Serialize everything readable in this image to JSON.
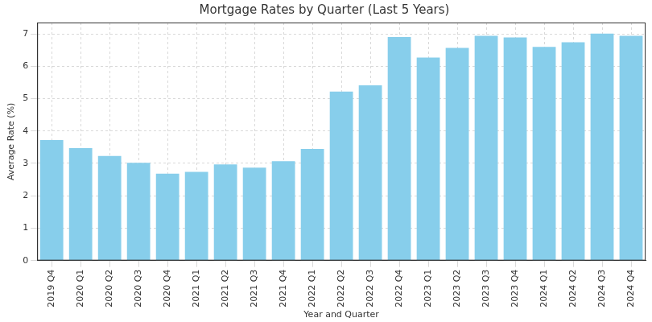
{
  "chart_data": {
    "type": "bar",
    "title": "Mortgage Rates by Quarter (Last 5 Years)",
    "x_label": "Year and Quarter",
    "y_label": "Average Rate (%)",
    "categories": [
      "2019 Q4",
      "2020 Q1",
      "2020 Q2",
      "2020 Q3",
      "2020 Q4",
      "2021 Q1",
      "2021 Q2",
      "2021 Q3",
      "2021 Q4",
      "2022 Q1",
      "2022 Q2",
      "2022 Q3",
      "2022 Q4",
      "2023 Q1",
      "2023 Q2",
      "2023 Q3",
      "2023 Q4",
      "2024 Q1",
      "2024 Q2",
      "2024 Q3",
      "2024 Q4"
    ],
    "values": [
      3.72,
      3.47,
      3.23,
      3.02,
      2.68,
      2.74,
      2.97,
      2.87,
      3.07,
      3.45,
      5.22,
      5.41,
      6.9,
      6.27,
      6.57,
      6.94,
      6.89,
      6.6,
      6.74,
      7.01,
      6.94
    ],
    "color": "#87ceeb",
    "ylim": [
      0,
      7.35
    ],
    "yticks": [
      0,
      1,
      2,
      3,
      4,
      5,
      6,
      7
    ],
    "grid": true
  }
}
